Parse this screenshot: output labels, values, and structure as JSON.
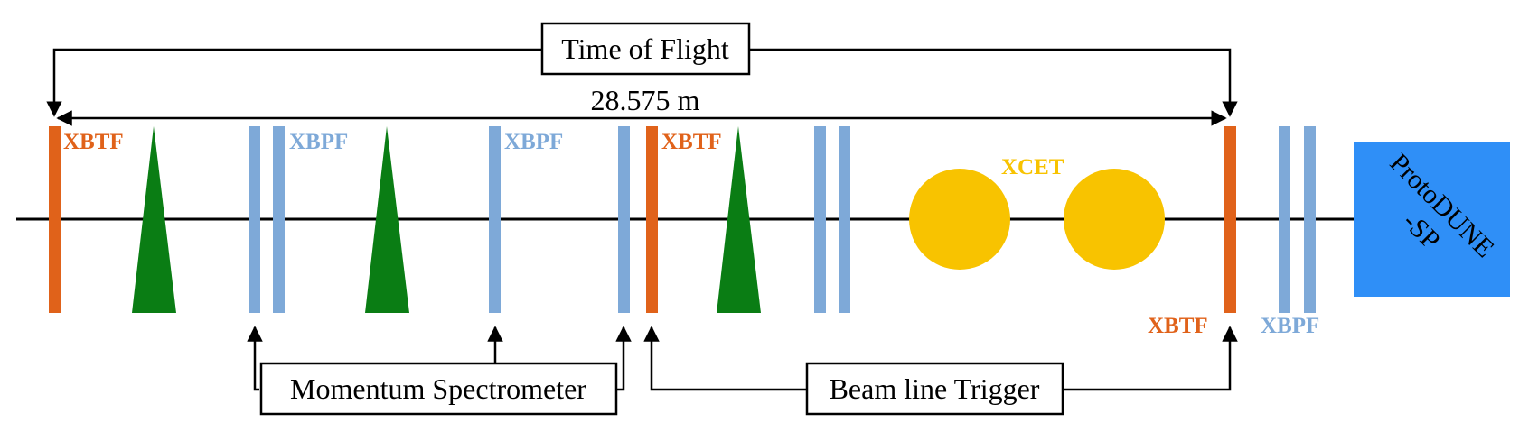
{
  "labels": {
    "time_of_flight": "Time of Flight",
    "distance": "28.575 m",
    "xbtf": "XBTF",
    "xbpf": "XBPF",
    "xcet": "XCET",
    "momentum_spectrometer": "Momentum Spectrometer",
    "beam_line_trigger": "Beam line Trigger",
    "protodune_line1": "ProtoDUNE",
    "protodune_line2": "-SP"
  },
  "colors": {
    "xbtf": "#e0621a",
    "xbpf": "#7ea9d8",
    "magnet": "#0a7d14",
    "xcet": "#f8c300",
    "protodune": "#2f8ff7",
    "line": "#000000"
  }
}
